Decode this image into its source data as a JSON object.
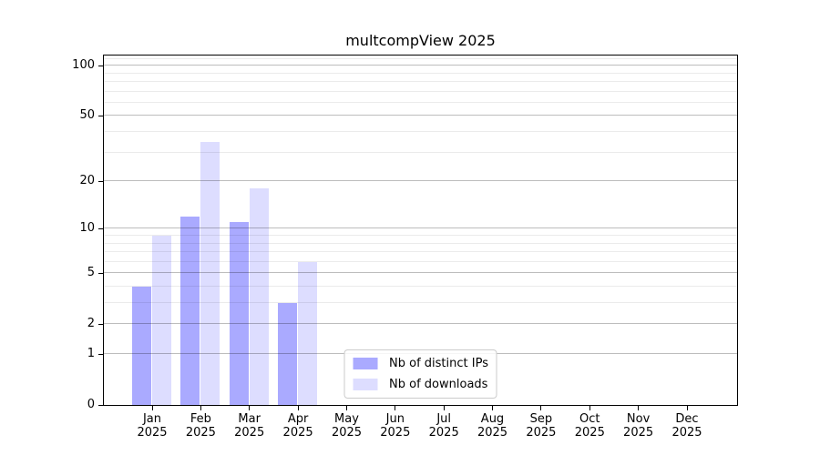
{
  "chart_data": {
    "type": "bar",
    "title": "multcompView 2025",
    "categories": [
      "Jan 2025",
      "Feb 2025",
      "Mar 2025",
      "Apr 2025",
      "May 2025",
      "Jun 2025",
      "Jul 2025",
      "Aug 2025",
      "Sep 2025",
      "Oct 2025",
      "Nov 2025",
      "Dec 2025"
    ],
    "series": [
      {
        "name": "Nb of distinct IPs",
        "color": "#aaaaff",
        "values": [
          4,
          12,
          11,
          3,
          0,
          0,
          0,
          0,
          0,
          0,
          0,
          0
        ]
      },
      {
        "name": "Nb of downloads",
        "color": "#ddddff",
        "values": [
          9,
          35,
          18,
          6,
          0,
          0,
          0,
          0,
          0,
          0,
          0,
          0
        ]
      }
    ],
    "yscale": "log1p",
    "ylim": [
      0,
      115
    ],
    "yticks": [
      0,
      1,
      2,
      5,
      10,
      20,
      50,
      100
    ],
    "minor_yticks": [
      3,
      4,
      6,
      7,
      8,
      9,
      30,
      40,
      60,
      70,
      80,
      90,
      110
    ],
    "xlabel": "",
    "ylabel": "",
    "grid": true,
    "axis_color": "#000000",
    "grid_major_color": "#bdbdbd",
    "grid_minor_color": "#ececec",
    "legend_position": "lower center"
  }
}
